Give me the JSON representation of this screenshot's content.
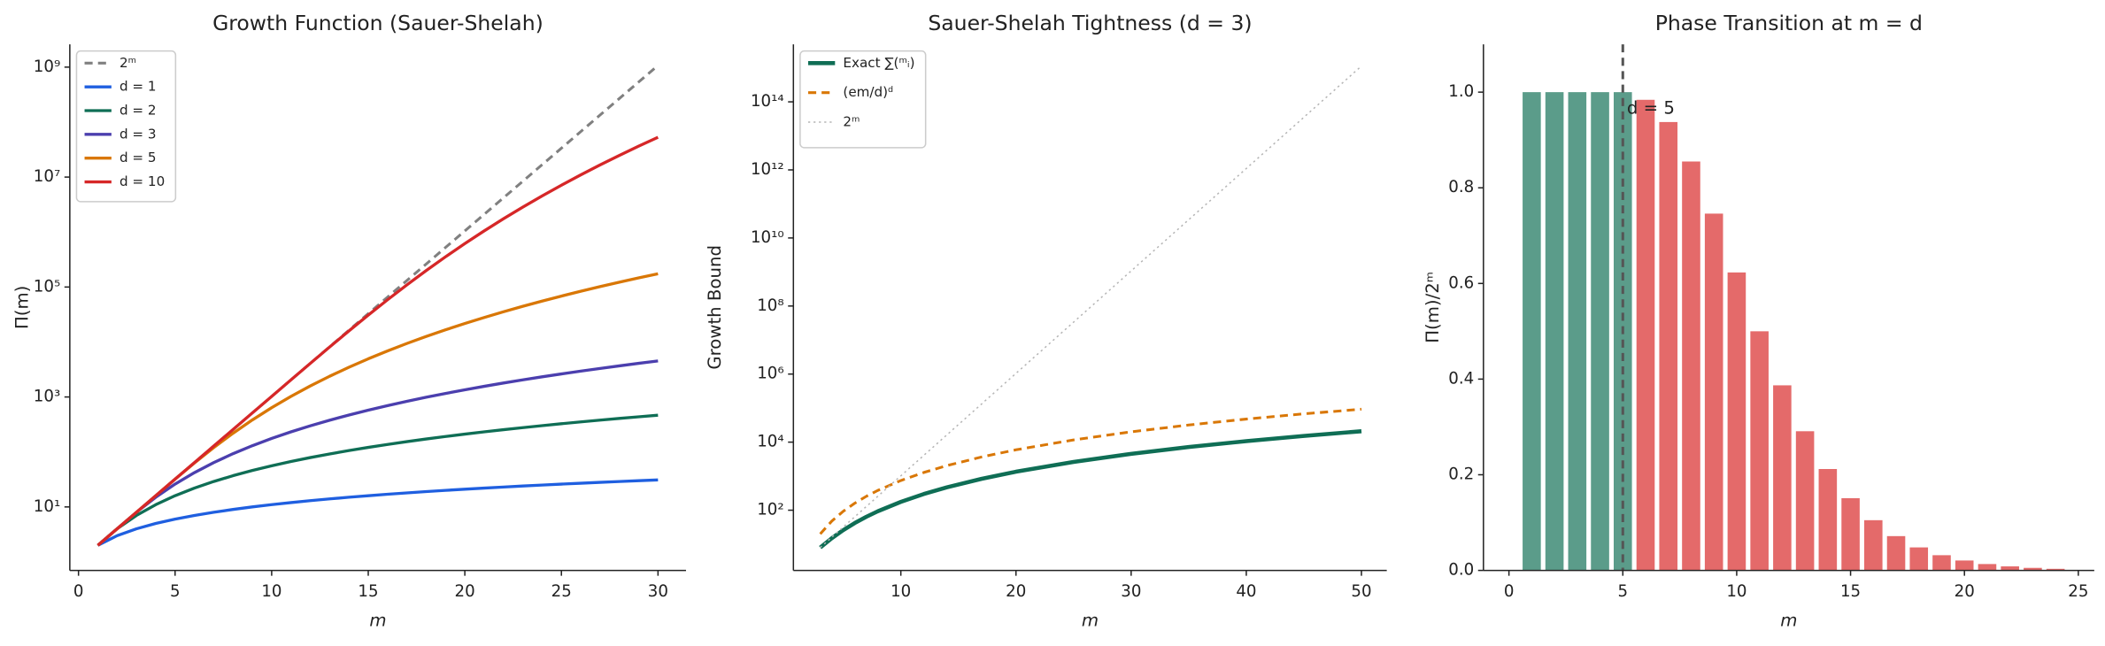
{
  "chart_data": [
    {
      "type": "line",
      "title": "Growth Function (Sauer-Shelah)",
      "xlabel": "m",
      "ylabel": "Π(m)",
      "ylog": true,
      "legend": "upper left",
      "x": [
        1,
        2,
        3,
        4,
        5,
        6,
        7,
        8,
        9,
        10,
        11,
        12,
        13,
        14,
        15,
        16,
        17,
        18,
        19,
        20,
        21,
        22,
        23,
        24,
        25,
        26,
        27,
        28,
        29,
        30
      ],
      "xlim": [
        -0.45,
        31.45
      ],
      "ylim": [
        0.7,
        2600000000
      ],
      "xticks": [
        0,
        5,
        10,
        15,
        20,
        25,
        30
      ],
      "yticks": [
        {
          "value": 10,
          "label": "10¹"
        },
        {
          "value": 1000,
          "label": "10³"
        },
        {
          "value": 100000,
          "label": "10⁵"
        },
        {
          "value": 10000000,
          "label": "10⁷"
        },
        {
          "value": 1000000000,
          "label": "10⁹"
        }
      ],
      "series": [
        {
          "name": "2ᵐ",
          "color": "#808080",
          "style": "dashed",
          "values": [
            2,
            4,
            8,
            16,
            32,
            64,
            128,
            256,
            512,
            1024,
            2048,
            4096,
            8192,
            16384,
            32768,
            65536,
            131072,
            262144,
            524288,
            1048576,
            2097152,
            4194304,
            8388608,
            16777216,
            33554432,
            67108864,
            134217728,
            268435456,
            536870912,
            1073741824
          ]
        },
        {
          "name": "d = 1",
          "color": "#1f5fe0",
          "style": "solid",
          "values": [
            2,
            3,
            4,
            5,
            6,
            7,
            8,
            9,
            10,
            11,
            12,
            13,
            14,
            15,
            16,
            17,
            18,
            19,
            20,
            21,
            22,
            23,
            24,
            25,
            26,
            27,
            28,
            29,
            30,
            31
          ]
        },
        {
          "name": "d = 2",
          "color": "#0f6e55",
          "style": "solid",
          "values": [
            2,
            4,
            7,
            11,
            16,
            22,
            29,
            37,
            46,
            56,
            67,
            79,
            92,
            106,
            121,
            137,
            154,
            172,
            191,
            211,
            232,
            254,
            277,
            301,
            326,
            352,
            379,
            407,
            436,
            466
          ]
        },
        {
          "name": "d = 3",
          "color": "#4b3fae",
          "style": "solid",
          "values": [
            2,
            4,
            8,
            15,
            26,
            42,
            64,
            93,
            130,
            176,
            232,
            299,
            378,
            470,
            576,
            697,
            834,
            988,
            1160,
            1351,
            1562,
            1794,
            2048,
            2325,
            2626,
            2952,
            3304,
            3683,
            4090,
            4526
          ]
        },
        {
          "name": "d = 5",
          "color": "#d97706",
          "style": "solid",
          "values": [
            2,
            4,
            8,
            16,
            32,
            63,
            120,
            219,
            382,
            638,
            1024,
            1586,
            2380,
            3473,
            4944,
            6885,
            9402,
            12616,
            16664,
            21700,
            27896,
            35443,
            44552,
            55455,
            68406,
            83682,
            101584,
            122438,
            146596,
            174437
          ]
        },
        {
          "name": "d = 10",
          "color": "#d62728",
          "style": "solid",
          "values": [
            2,
            4,
            8,
            16,
            32,
            64,
            128,
            256,
            512,
            1024,
            2047,
            4083,
            8100,
            15914,
            30827,
            58651,
            109294,
            199140,
            354522,
            616666,
            1048576,
            1744436,
            2842226,
            4540386,
            7119516,
            10970272,
            16628809,
            24821333,
            36519556,
            53009102
          ]
        }
      ]
    },
    {
      "type": "line",
      "title": "Sauer-Shelah Tightness (d = 3)",
      "xlabel": "m",
      "ylabel": "Growth Bound",
      "ylog": true,
      "legend": "upper left",
      "x": [
        3,
        4,
        5,
        6,
        7,
        8,
        10,
        12,
        14,
        17,
        20,
        25,
        30,
        35,
        40,
        45,
        50
      ],
      "xlim": [
        0.67,
        52.2
      ],
      "ylim": [
        1.7,
        4900000000000000
      ],
      "xticks": [
        10,
        20,
        30,
        40,
        50
      ],
      "yticks": [
        {
          "value": 100,
          "label": "10²"
        },
        {
          "value": 10000,
          "label": "10⁴"
        },
        {
          "value": 1000000,
          "label": "10⁶"
        },
        {
          "value": 100000000,
          "label": "10⁸"
        },
        {
          "value": 10000000000,
          "label": "10¹⁰"
        },
        {
          "value": 1000000000000,
          "label": "10¹²"
        },
        {
          "value": 100000000000000,
          "label": "10¹⁴"
        }
      ],
      "series": [
        {
          "name": "Exact ∑(ᵐᵢ)",
          "color": "#0f6e55",
          "style": "thick",
          "values": [
            8,
            15,
            26,
            42,
            64,
            93,
            176,
            299,
            470,
            834,
            1351,
            2626,
            4526,
            7176,
            10701,
            15226,
            20876
          ]
        },
        {
          "name": "(em/d)ᵈ",
          "color": "#d97706",
          "style": "dashed",
          "values": [
            20.1,
            47.6,
            93,
            160.7,
            255.2,
            380.9,
            743.9,
            1285.5,
            2041.3,
            3654.8,
            5951.3,
            11624,
            20086,
            31895,
            47610,
            67789,
            92989
          ]
        },
        {
          "name": "2ᵐ",
          "color": "#b5b5b5",
          "style": "dotted",
          "values": [
            8,
            16,
            32,
            64,
            128,
            256,
            1024,
            4096,
            16384,
            131072,
            1048576,
            33554432,
            1073741824,
            34359738368,
            1099511627776,
            35184372088832,
            1125899906842624
          ]
        }
      ]
    },
    {
      "type": "bar",
      "title": "Phase Transition at m = d",
      "xlabel": "m",
      "ylabel": "Π(m)/2ᵐ",
      "x": [
        1,
        2,
        3,
        4,
        5,
        6,
        7,
        8,
        9,
        10,
        11,
        12,
        13,
        14,
        15,
        16,
        17,
        18,
        19,
        20,
        21,
        22,
        23,
        24
      ],
      "values": [
        1,
        1,
        1,
        1,
        1,
        0.984,
        0.9375,
        0.855,
        0.746,
        0.623,
        0.5,
        0.387,
        0.291,
        0.212,
        0.151,
        0.105,
        0.0717,
        0.0481,
        0.0318,
        0.0207,
        0.0133,
        0.00845,
        0.00531,
        0.00331
      ],
      "colors": {
        "at_or_below": "#5b9c8a",
        "above": "#e46a6a"
      },
      "vline": {
        "value": 5,
        "label": "d = 5",
        "color": "#555555"
      },
      "xlim": [
        -1.12,
        25.7
      ],
      "ylim": [
        0,
        1.1
      ],
      "xticks": [
        0,
        5,
        10,
        15,
        20,
        25
      ],
      "yticks": [
        {
          "value": 0,
          "label": "0.0"
        },
        0.2,
        0.4,
        0.6,
        0.8,
        {
          "value": 1,
          "label": "1.0"
        }
      ]
    }
  ]
}
